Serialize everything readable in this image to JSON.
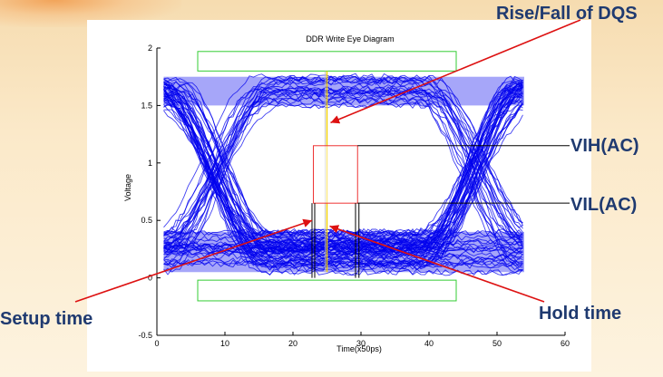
{
  "callouts": {
    "rise_fall": "Rise/Fall of DQS",
    "vih": "VIH(AC)",
    "vil": "VIL(AC)",
    "setup": "Setup time",
    "hold": "Hold time"
  },
  "colors": {
    "traces": "#0000ee",
    "mask_box": "#ee3333",
    "dqs_line": "#f2d000",
    "guard_box": "#33cc33",
    "arrow": "#dd1111",
    "leader": "#000000",
    "callout_text": "#1f3a70"
  },
  "chart_data": {
    "type": "line",
    "title": "DDR Write Eye Diagram",
    "xlabel": "Time(x50ps)",
    "ylabel": "Voltage",
    "xlim": [
      0,
      60
    ],
    "ylim": [
      -0.5,
      2
    ],
    "xticks": [
      0,
      10,
      20,
      30,
      40,
      50,
      60
    ],
    "yticks": [
      -0.5,
      0,
      0.5,
      1,
      1.5,
      2
    ],
    "trace_span_x": [
      1,
      54
    ],
    "high_rail": [
      1.5,
      1.75
    ],
    "low_rail": [
      0.05,
      0.4
    ],
    "crossings_x": [
      8.5,
      47
    ],
    "eye_mask": {
      "x": [
        23,
        29.5
      ],
      "y": [
        0.65,
        1.15
      ]
    },
    "dqs_edge_x": 25,
    "guard_top": {
      "x": [
        6,
        44
      ],
      "y": [
        1.8,
        1.97
      ]
    },
    "guard_bottom": {
      "x": [
        6,
        44
      ],
      "y": [
        -0.2,
        -0.02
      ]
    },
    "setup_x": [
      22.8,
      23.2
    ],
    "hold_x": [
      29.2,
      29.7
    ],
    "grid": false
  }
}
